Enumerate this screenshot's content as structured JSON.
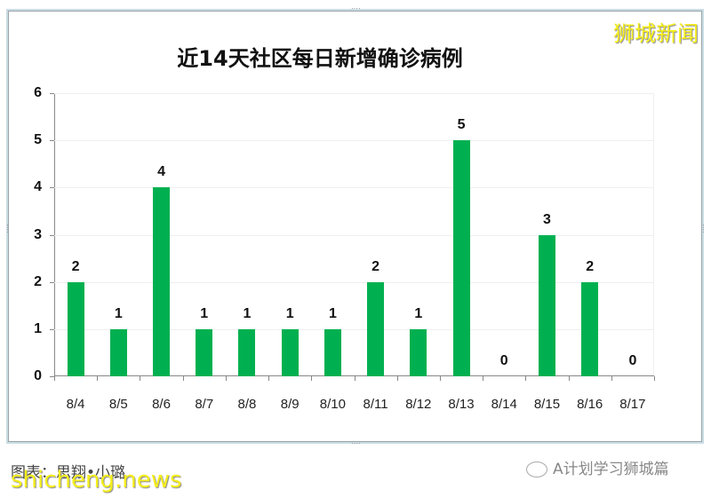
{
  "header": {
    "title": "近14天社区每日新增确诊病例",
    "watermark": "狮城新闻"
  },
  "footer": {
    "credit": "图表：思翔•小璐",
    "watermark": "shicheng.news",
    "account_name": "A计划学习狮城篇",
    "account_icon": "wechat-icon"
  },
  "colors": {
    "bar": "#00B050",
    "watermark": "#F5EE1C"
  },
  "chart_data": {
    "type": "bar",
    "title": "近14天社区每日新增确诊病例",
    "xlabel": "",
    "ylabel": "",
    "categories": [
      "8/4",
      "8/5",
      "8/6",
      "8/7",
      "8/8",
      "8/9",
      "8/10",
      "8/11",
      "8/12",
      "8/13",
      "8/14",
      "8/15",
      "8/16",
      "8/17"
    ],
    "values": [
      2,
      1,
      4,
      1,
      1,
      1,
      1,
      2,
      1,
      5,
      0,
      3,
      2,
      0
    ],
    "ylim": [
      0,
      6
    ],
    "yticks": [
      0,
      1,
      2,
      3,
      4,
      5,
      6
    ],
    "grid": true,
    "legend": null,
    "data_labels": true,
    "bar_color": "#00B050"
  }
}
